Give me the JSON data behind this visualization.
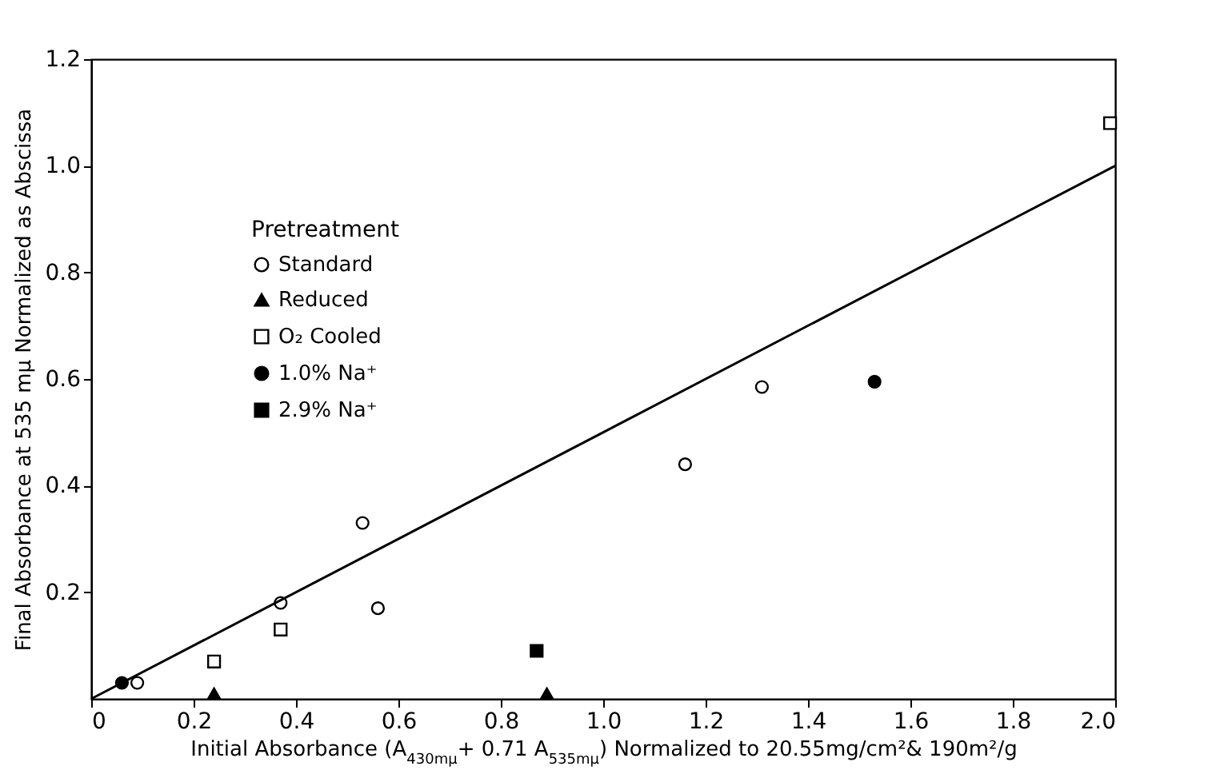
{
  "chart_data": {
    "type": "scatter",
    "xlabel": "Initial Absorbance (A$_{430mμ}$+ 0.71 A$_{535mμ}$) Normalized to 20.55mg/cm²& 190m²/g",
    "ylabel": "Final Absorbance at 535 mμ  Normalized as Abscissa",
    "legend_title": "Pretreatment",
    "xlim": [
      0,
      2.0
    ],
    "xticks": [
      0,
      0.2,
      0.4,
      0.6,
      0.8,
      {
        "value": 1,
        "label": "1.0"
      },
      1.2,
      1.4,
      1.6,
      1.8,
      {
        "value": 2,
        "label": "2.0"
      }
    ],
    "ylim": [
      0,
      1.2
    ],
    "yticks": [
      0.2,
      0.4,
      0.6,
      0.8,
      {
        "value": 1,
        "label": "1.0"
      },
      1.2
    ],
    "legend": "top left",
    "grid": false,
    "series": [
      {
        "name": "Standard",
        "color": "#ffffff",
        "marker": "circle",
        "x": [
          0.09,
          0.37,
          0.53,
          0.56,
          1.16,
          1.31
        ],
        "values": [
          0.03,
          0.18,
          0.33,
          0.17,
          0.44,
          0.585
        ]
      },
      {
        "name": "Reduced",
        "color": "#000000",
        "marker": "triangle",
        "x": [
          0.24,
          0.89
        ],
        "values": [
          0.01,
          0.01
        ]
      },
      {
        "name": "O₂ Cooled",
        "color": "#ffffff",
        "marker": "square",
        "x": [
          0.24,
          0.37,
          1.99
        ],
        "values": [
          0.07,
          0.13,
          1.08
        ]
      },
      {
        "name": "1.0% Na⁺",
        "color": "#000000",
        "marker": "circle",
        "x": [
          0.06,
          1.53
        ],
        "values": [
          0.03,
          0.595
        ]
      },
      {
        "name": "2.9% Na⁺",
        "color": "#000000",
        "marker": "square",
        "x": [
          0.87
        ],
        "values": [
          0.09
        ]
      },
      {
        "type": "line",
        "color": "#000000",
        "x": [
          0,
          2.0
        ],
        "values": [
          0,
          1.0
        ]
      }
    ]
  }
}
